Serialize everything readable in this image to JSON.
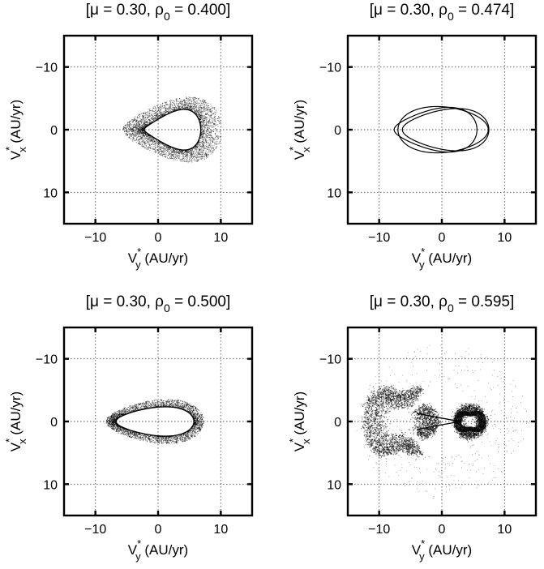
{
  "chart_data": [
    {
      "type": "scatter",
      "title": "[μ = 0.30, ρ0 = 0.400]",
      "title_parts": {
        "mu": "μ = 0.30, ",
        "rho": "ρ",
        "sub": "0",
        "rest": " = 0.400]",
        "open": "["
      },
      "xlabel": {
        "var": "V",
        "sub": "y",
        "sup": "*",
        "unit": " (AU/yr)"
      },
      "ylabel": {
        "var": "V",
        "sub": "x",
        "sup": "*",
        "unit": " (AU/yr)"
      },
      "xlim": [
        -15,
        15
      ],
      "ylim": [
        -15,
        15
      ],
      "y_inverted": true,
      "xticks": [
        -10,
        0,
        10
      ],
      "yticks": [
        -10,
        0,
        10
      ],
      "xtick_labels": [
        "−10",
        "0",
        "10"
      ],
      "ytick_labels": [
        "−10",
        "0",
        "10"
      ],
      "grid": true,
      "curve": {
        "style": "band",
        "cx": 2.3,
        "outer_a": 7.9,
        "outer_b": 6.2,
        "outer_pinch": 0.45,
        "outer_shape": 0.25,
        "inner_a": 4.5,
        "inner_b": 3.9,
        "inner_pinch": 0.55,
        "inner_shape": 0.35,
        "dots": 3600,
        "opacity": 0.55
      }
    },
    {
      "type": "line",
      "title": "[μ = 0.30, ρ0 = 0.474]",
      "title_parts": {
        "mu": "μ = 0.30, ",
        "rho": "ρ",
        "sub": "0",
        "rest": " = 0.474]",
        "open": "["
      },
      "xlabel": {
        "var": "V",
        "sub": "y",
        "sup": "*",
        "unit": " (AU/yr)"
      },
      "ylabel": {
        "var": "V",
        "sub": "x",
        "sup": "*",
        "unit": " (AU/yr)"
      },
      "xlim": [
        -15,
        15
      ],
      "ylim": [
        -15,
        15
      ],
      "y_inverted": true,
      "xticks": [
        -10,
        0,
        10
      ],
      "yticks": [
        -10,
        0,
        10
      ],
      "xtick_labels": [
        "−10",
        "0",
        "10"
      ],
      "ytick_labels": [
        "−10",
        "0",
        "10"
      ],
      "grid": true,
      "curve": {
        "style": "loops",
        "loops": [
          {
            "cx": -1.0,
            "a": 6.6,
            "b": 3.6,
            "pinch": 0.15,
            "shape": 0.6
          },
          {
            "cx": 0.2,
            "a": 7.2,
            "b": 4.3,
            "pinch": 0.3,
            "shape": -0.55
          },
          {
            "cx": 0.6,
            "a": 6.9,
            "b": 3.4,
            "pinch": 0.1,
            "shape": 0.5
          }
        ]
      }
    },
    {
      "type": "scatter",
      "title": "[μ = 0.30, ρ0 = 0.500]",
      "title_parts": {
        "mu": "μ = 0.30, ",
        "rho": "ρ",
        "sub": "0",
        "rest": " = 0.500]",
        "open": "["
      },
      "xlabel": {
        "var": "V",
        "sub": "y",
        "sup": "*",
        "unit": " (AU/yr)"
      },
      "ylabel": {
        "var": "V",
        "sub": "x",
        "sup": "*",
        "unit": " (AU/yr)"
      },
      "xlim": [
        -15,
        15
      ],
      "ylim": [
        -15,
        15
      ],
      "y_inverted": true,
      "xticks": [
        -10,
        0,
        10
      ],
      "yticks": [
        -10,
        0,
        10
      ],
      "xtick_labels": [
        "−10",
        "0",
        "10"
      ],
      "ytick_labels": [
        "−10",
        "0",
        "10"
      ],
      "grid": true,
      "curve": {
        "style": "band",
        "cx": -0.5,
        "outer_a": 7.8,
        "outer_b": 4.3,
        "outer_pinch": 0.4,
        "outer_shape": 0.05,
        "inner_a": 6.2,
        "inner_b": 2.8,
        "inner_pinch": 0.4,
        "inner_shape": 0.1,
        "dots": 3200,
        "opacity": 0.55
      }
    },
    {
      "type": "scatter",
      "title": "[μ = 0.30, ρ0 = 0.595]",
      "title_parts": {
        "mu": "μ = 0.30, ",
        "rho": "ρ",
        "sub": "0",
        "rest": " = 0.595]",
        "open": "["
      },
      "xlabel": {
        "var": "V",
        "sub": "y",
        "sup": "*",
        "unit": " (AU/yr)"
      },
      "ylabel": {
        "var": "V",
        "sub": "x",
        "sup": "*",
        "unit": " (AU/yr)"
      },
      "xlim": [
        -15,
        15
      ],
      "ylim": [
        -15,
        15
      ],
      "y_inverted": true,
      "xticks": [
        -10,
        0,
        10
      ],
      "yticks": [
        -10,
        0,
        10
      ],
      "xtick_labels": [
        "−10",
        "0",
        "10"
      ],
      "ytick_labels": [
        "−10",
        "0",
        "10"
      ],
      "grid": true,
      "curve": {
        "style": "chaotic",
        "left_lobe": {
          "cx": -6.5,
          "a": 6.0,
          "b": 8.0
        },
        "right_lobe": {
          "cx": 4.5,
          "a": 2.5,
          "b": 2.6
        },
        "dots": 5200,
        "scatter_dots": 450,
        "opacity": 0.6
      }
    }
  ]
}
